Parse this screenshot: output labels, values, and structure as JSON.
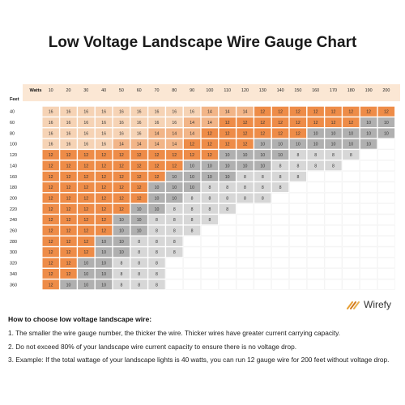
{
  "chart_data": {
    "type": "table",
    "title": "Low Voltage Landscape Wire Gauge Chart",
    "column_header": "Watts",
    "row_header": "Feet",
    "columns": [
      10,
      20,
      30,
      40,
      50,
      60,
      70,
      80,
      90,
      100,
      110,
      120,
      130,
      140,
      150,
      160,
      170,
      180,
      190,
      200
    ],
    "rows": [
      {
        "feet": 40,
        "values": [
          16,
          16,
          16,
          16,
          16,
          16,
          16,
          16,
          16,
          14,
          14,
          14,
          12,
          12,
          12,
          12,
          12,
          12,
          12,
          12
        ]
      },
      {
        "feet": 60,
        "values": [
          16,
          16,
          16,
          16,
          16,
          16,
          16,
          16,
          14,
          14,
          12,
          12,
          12,
          12,
          12,
          12,
          12,
          12,
          10,
          10
        ]
      },
      {
        "feet": 80,
        "values": [
          16,
          16,
          16,
          16,
          16,
          16,
          14,
          14,
          14,
          12,
          12,
          12,
          12,
          12,
          12,
          10,
          10,
          10,
          10,
          10
        ]
      },
      {
        "feet": 100,
        "values": [
          16,
          16,
          16,
          16,
          14,
          14,
          14,
          14,
          12,
          12,
          12,
          12,
          10,
          10,
          10,
          10,
          10,
          10,
          10
        ]
      },
      {
        "feet": 120,
        "values": [
          12,
          12,
          12,
          12,
          12,
          12,
          12,
          12,
          12,
          12,
          10,
          10,
          10,
          10,
          8,
          8,
          8,
          8
        ]
      },
      {
        "feet": 140,
        "values": [
          12,
          12,
          12,
          12,
          12,
          12,
          12,
          12,
          10,
          10,
          10,
          10,
          10,
          8,
          8,
          8,
          8
        ]
      },
      {
        "feet": 160,
        "values": [
          12,
          12,
          12,
          12,
          12,
          12,
          12,
          10,
          10,
          10,
          10,
          8,
          8,
          8,
          8
        ]
      },
      {
        "feet": 180,
        "values": [
          12,
          12,
          12,
          12,
          12,
          12,
          10,
          10,
          10,
          8,
          8,
          8,
          8,
          8
        ]
      },
      {
        "feet": 200,
        "values": [
          12,
          12,
          12,
          12,
          12,
          12,
          10,
          10,
          8,
          8,
          8,
          8,
          8
        ]
      },
      {
        "feet": 220,
        "values": [
          12,
          12,
          12,
          12,
          12,
          10,
          10,
          8,
          8,
          8,
          8
        ]
      },
      {
        "feet": 240,
        "values": [
          12,
          12,
          12,
          12,
          10,
          10,
          8,
          8,
          8,
          8
        ]
      },
      {
        "feet": 260,
        "values": [
          12,
          12,
          12,
          12,
          10,
          10,
          8,
          8,
          8
        ]
      },
      {
        "feet": 280,
        "values": [
          12,
          12,
          12,
          10,
          10,
          8,
          8,
          8
        ]
      },
      {
        "feet": 300,
        "values": [
          12,
          12,
          12,
          10,
          10,
          8,
          8,
          8
        ]
      },
      {
        "feet": 320,
        "values": [
          12,
          12,
          10,
          10,
          8,
          8,
          8
        ]
      },
      {
        "feet": 340,
        "values": [
          12,
          12,
          10,
          10,
          8,
          8,
          8
        ]
      },
      {
        "feet": 360,
        "values": [
          12,
          10,
          10,
          10,
          8,
          8,
          8
        ]
      }
    ],
    "colors": {
      "16": "#f6d3b5",
      "14": "#f2b588",
      "12": "#ee8c48",
      "10": "#b0b0b0",
      "8": "#d7d7d7",
      "header_band": "#fbe7d4",
      "grid_line": "#ffffff"
    }
  },
  "brand": {
    "name": "Wirefy",
    "icon": "wire-logo-icon"
  },
  "howto": {
    "heading": "How to choose low voltage landscape wire:",
    "items": [
      "1. The smaller the wire gauge number, the thicker the wire. Thicker wires have greater current carrying capacity.",
      "2. Do not exceed 80% of your landscape wire current capacity to ensure there is no voltage drop.",
      "3. Example: If the total wattage of your landscape lights is 40 watts, you can run 12 gauge wire for 200 feet without voltage drop."
    ]
  }
}
